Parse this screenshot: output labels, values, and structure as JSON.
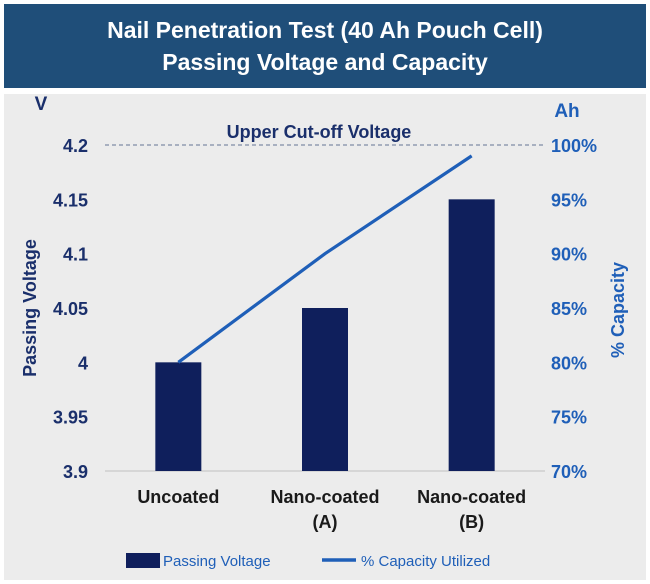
{
  "header": {
    "title_line1": "Nail Penetration Test  (40 Ah Pouch Cell)",
    "title_line2": "Passing Voltage and Capacity"
  },
  "colors": {
    "header_bg": "#1f4e79",
    "bar": "#0f1f5c",
    "line": "#1f5fb8",
    "left_axis_text": "#1a2f6b",
    "right_axis_text": "#1f5fb8"
  },
  "chart_data": {
    "type": "bar",
    "categories": [
      "Uncoated",
      "Nano-coated (A)",
      "Nano-coated (B)"
    ],
    "category_lines": [
      [
        "Uncoated"
      ],
      [
        "Nano-coated",
        "(A)"
      ],
      [
        "Nano-coated",
        "(B)"
      ]
    ],
    "series": [
      {
        "name": "Passing Voltage",
        "type": "bar",
        "axis": "left",
        "values": [
          4.0,
          4.05,
          4.15
        ]
      },
      {
        "name": "% Capacity Utilized",
        "type": "line",
        "axis": "right",
        "values": [
          80,
          90,
          99
        ]
      }
    ],
    "y_left": {
      "label": "Passing Voltage",
      "unit": "V",
      "lim": [
        3.9,
        4.2
      ],
      "ticks": [
        "3.9",
        "3.95",
        "4",
        "4.05",
        "4.1",
        "4.15",
        "4.2"
      ]
    },
    "y_right": {
      "label": "% Capacity",
      "unit": "Ah",
      "lim": [
        70,
        100
      ],
      "ticks": [
        "70%",
        "75%",
        "80%",
        "85%",
        "90%",
        "95%",
        "100%"
      ]
    },
    "reference_line": {
      "label": "Upper Cut-off Voltage",
      "value": 4.2
    },
    "legend": {
      "position": "bottom",
      "entries": [
        "Passing Voltage",
        "% Capacity Utilized"
      ]
    },
    "grid": false
  }
}
